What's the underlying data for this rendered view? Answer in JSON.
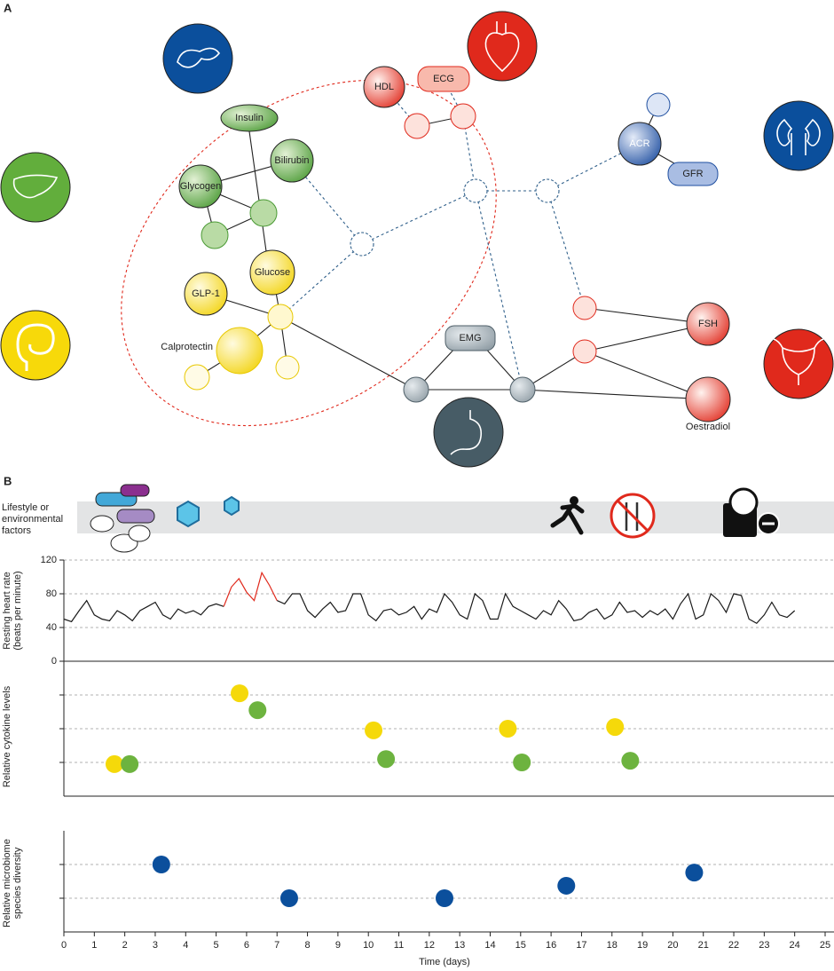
{
  "panel_a": {
    "label": "A",
    "nodes": [
      "Insulin",
      "Bilirubin",
      "Glycogen",
      "Glucose",
      "GLP-1",
      "Calprotectin",
      "HDL",
      "ECG",
      "ACR",
      "GFR",
      "EMG",
      "FSH",
      "Oestradiol"
    ]
  },
  "panel_b": {
    "label": "B",
    "lifestyle_label": [
      "Lifestyle or",
      "environmental",
      "factors"
    ]
  },
  "chart_data": [
    {
      "type": "line",
      "ylabel": [
        "Resting heart rate",
        "(beats per minute)"
      ],
      "xlim": [
        0,
        25
      ],
      "ylim": [
        0,
        120
      ],
      "yticks": [
        0,
        40,
        80,
        120
      ],
      "grid": true,
      "show_tick_labels": true,
      "x": [
        0,
        0.25,
        0.5,
        0.75,
        1,
        1.25,
        1.5,
        1.75,
        2,
        2.25,
        2.5,
        2.75,
        3,
        3.25,
        3.5,
        3.75,
        4,
        4.25,
        4.5,
        4.75,
        5,
        5.25,
        5.5,
        5.75,
        6,
        6.25,
        6.5,
        6.75,
        7,
        7.25,
        7.5,
        7.75,
        8,
        8.25,
        8.5,
        8.75,
        9,
        9.25,
        9.5,
        9.75,
        10,
        10.25,
        10.5,
        10.75,
        11,
        11.25,
        11.5,
        11.75,
        12,
        12.25,
        12.5,
        12.75,
        13,
        13.25,
        13.5,
        13.75,
        14,
        14.25,
        14.5,
        14.75,
        15,
        15.25,
        15.5,
        15.75,
        16,
        16.25,
        16.5,
        16.75,
        17,
        17.25,
        17.5,
        17.75,
        18,
        18.25,
        18.5,
        18.75,
        19,
        19.25,
        19.5,
        19.75,
        20,
        20.25,
        20.5,
        20.75,
        21,
        21.25,
        21.5,
        21.75,
        22,
        22.25,
        22.5,
        22.75,
        23,
        23.25,
        23.5,
        23.75,
        24
      ],
      "series": [
        {
          "color": "#1a1a1a",
          "values": [
            50,
            47,
            60,
            72,
            55,
            50,
            48,
            60,
            55,
            48,
            60,
            65,
            70,
            55,
            50,
            62,
            57,
            60,
            55,
            65,
            68,
            65,
            null,
            null,
            null,
            null,
            null,
            null,
            72,
            68,
            80,
            80,
            60,
            52,
            62,
            70,
            58,
            60,
            80,
            80,
            55,
            48,
            60,
            62,
            55,
            58,
            65,
            50,
            62,
            58,
            80,
            70,
            55,
            50,
            80,
            72,
            50,
            50,
            80,
            65,
            60,
            55,
            50,
            60,
            55,
            72,
            62,
            48,
            50,
            58,
            62,
            50,
            55,
            70,
            58,
            60,
            52,
            60,
            55,
            62,
            50,
            68,
            80,
            50,
            55,
            80,
            72,
            58,
            80,
            78,
            50,
            45,
            55,
            70,
            55,
            52,
            60
          ]
        },
        {
          "color": "#e0291c",
          "x": [
            5.25,
            5.5,
            5.75,
            6,
            6.25,
            6.5,
            6.75,
            7
          ],
          "values": [
            65,
            88,
            98,
            82,
            72,
            105,
            90,
            72
          ]
        }
      ]
    },
    {
      "type": "scatter",
      "ylabel": [
        "Relative cytokine levels"
      ],
      "xlim": [
        0,
        25
      ],
      "ylim": [
        0,
        4
      ],
      "yticks": [
        1,
        2,
        3
      ],
      "grid": true,
      "show_tick_labels": false,
      "series": [
        {
          "color": "#f5d90a",
          "x": [
            1.66,
            5.77,
            10.17,
            14.58,
            18.1
          ],
          "values": [
            0.95,
            3.05,
            1.95,
            2.0,
            2.05
          ]
        },
        {
          "color": "#6db33f",
          "x": [
            2.16,
            6.36,
            10.58,
            15.04,
            18.6
          ],
          "values": [
            0.95,
            2.55,
            1.1,
            1.0,
            1.05
          ]
        }
      ]
    },
    {
      "type": "scatter",
      "ylabel": [
        "Relative microbiome",
        "species diversity"
      ],
      "xlabel": "Time (days)",
      "xlim": [
        0,
        25
      ],
      "xticks": [
        0,
        1,
        2,
        3,
        4,
        5,
        6,
        7,
        8,
        9,
        10,
        11,
        12,
        13,
        14,
        15,
        16,
        17,
        18,
        19,
        20,
        21,
        22,
        23,
        24,
        25
      ],
      "ylim": [
        0,
        3
      ],
      "yticks": [
        1,
        2
      ],
      "grid": true,
      "show_tick_labels": false,
      "series": [
        {
          "color": "#0b4f9c",
          "x": [
            3.2,
            7.4,
            12.5,
            16.5,
            20.7
          ],
          "values": [
            2.0,
            1.0,
            1.0,
            1.37,
            1.76
          ]
        }
      ]
    }
  ]
}
